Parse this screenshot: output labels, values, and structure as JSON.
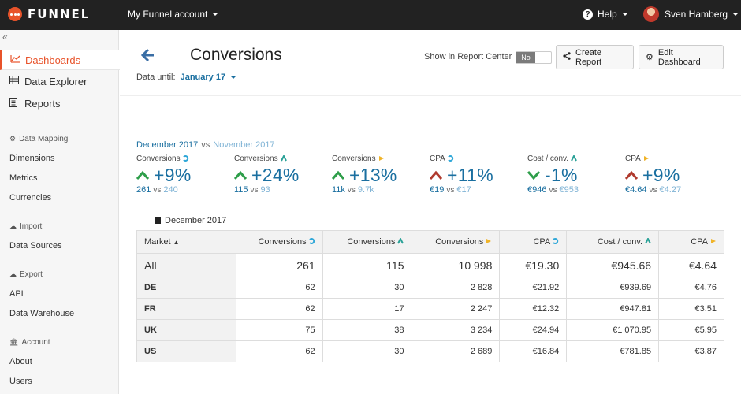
{
  "app": {
    "brand": "FUNNEL",
    "account": "My Funnel account",
    "help": "Help",
    "user": "Sven Hamberg"
  },
  "colors": {
    "accent": "#e8532a",
    "link": "#1a6fa0",
    "prev": "#7fb3d5",
    "up": "#2e9e4a",
    "down": "#b03a2e",
    "mk1": "#2fa7d8",
    "mk2": "#2aa197",
    "mk3": "#f0b429"
  },
  "sidebar": {
    "collapse": "«",
    "main": [
      {
        "label": "Dashboards",
        "icon": "chart-line-icon",
        "active": true
      },
      {
        "label": "Data Explorer",
        "icon": "table-icon"
      },
      {
        "label": "Reports",
        "icon": "document-icon"
      }
    ],
    "sections": [
      {
        "title": "Data Mapping",
        "icon": "gear-icon",
        "items": [
          "Dimensions",
          "Metrics",
          "Currencies"
        ]
      },
      {
        "title": "Import",
        "icon": "cloud-icon",
        "items": [
          "Data Sources"
        ]
      },
      {
        "title": "Export",
        "icon": "cloud-icon",
        "items": [
          "API",
          "Data Warehouse"
        ]
      },
      {
        "title": "Account",
        "icon": "bank-icon",
        "items": [
          "About",
          "Users"
        ]
      }
    ]
  },
  "header": {
    "title": "Conversions",
    "data_until_label": "Data until:",
    "data_until_value": "January 17",
    "show_rc_label": "Show in Report Center",
    "toggle_value": "No",
    "create_report": "Create Report",
    "edit_dashboard": "Edit Dashboard"
  },
  "compare": {
    "current": "December 2017",
    "vs": "vs",
    "previous": "November 2017"
  },
  "metrics": [
    {
      "label": "Conversions",
      "marker": "mk1",
      "direction": "up",
      "delta": "+9%",
      "current": "261",
      "vs": "vs",
      "previous": "240"
    },
    {
      "label": "Conversions",
      "marker": "mk2",
      "direction": "up",
      "delta": "+24%",
      "current": "115",
      "vs": "vs",
      "previous": "93"
    },
    {
      "label": "Conversions",
      "marker": "mk3",
      "direction": "up",
      "delta": "+13%",
      "current": "11k",
      "vs": "vs",
      "previous": "9.7k"
    },
    {
      "label": "CPA",
      "marker": "mk1",
      "direction": "up-bad",
      "delta": "+11%",
      "current": "€19",
      "vs": "vs",
      "previous": "€17"
    },
    {
      "label": "Cost / conv.",
      "marker": "mk2",
      "direction": "down-good",
      "delta": "-1%",
      "current": "€946",
      "vs": "vs",
      "previous": "€953"
    },
    {
      "label": "CPA",
      "marker": "mk3",
      "direction": "up-bad",
      "delta": "+9%",
      "current": "€4.64",
      "vs": "vs",
      "previous": "€4.27"
    }
  ],
  "legend": "December 2017",
  "table": {
    "headers": [
      {
        "label": "Market",
        "marker": ""
      },
      {
        "label": "Conversions",
        "marker": "mk1"
      },
      {
        "label": "Conversions",
        "marker": "mk2"
      },
      {
        "label": "Conversions",
        "marker": "mk3"
      },
      {
        "label": "CPA",
        "marker": "mk1"
      },
      {
        "label": "Cost / conv.",
        "marker": "mk2"
      },
      {
        "label": "CPA",
        "marker": "mk3"
      }
    ],
    "rows": [
      [
        "All",
        "261",
        "115",
        "10 998",
        "€19.30",
        "€945.66",
        "€4.64"
      ],
      [
        "DE",
        "62",
        "30",
        "2 828",
        "€21.92",
        "€939.69",
        "€4.76"
      ],
      [
        "FR",
        "62",
        "17",
        "2 247",
        "€12.32",
        "€947.81",
        "€3.51"
      ],
      [
        "UK",
        "75",
        "38",
        "3 234",
        "€24.94",
        "€1 070.95",
        "€5.95"
      ],
      [
        "US",
        "62",
        "30",
        "2 689",
        "€16.84",
        "€781.85",
        "€3.87"
      ]
    ]
  }
}
